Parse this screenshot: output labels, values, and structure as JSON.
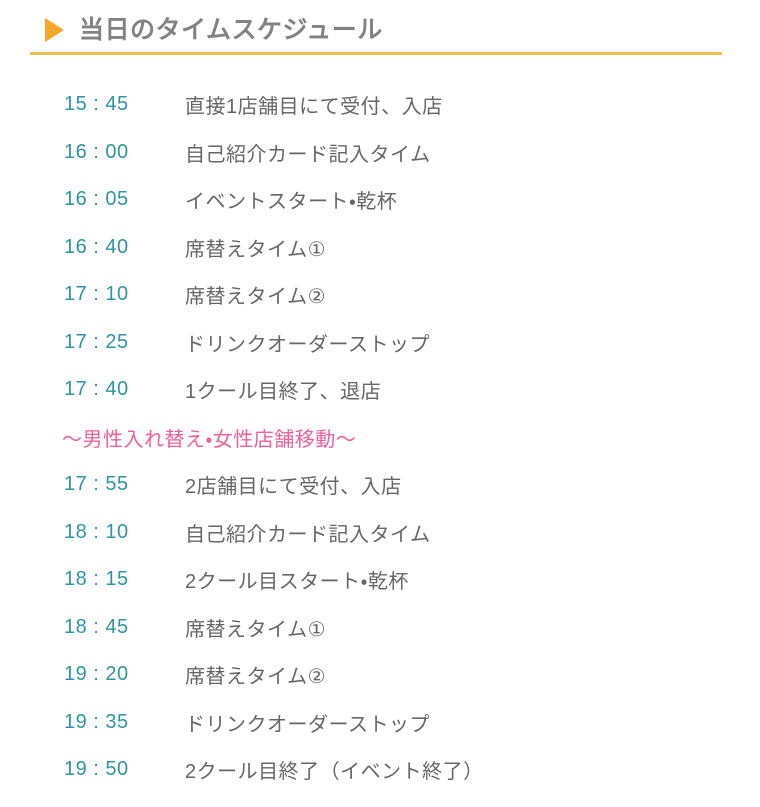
{
  "header": {
    "title": "当日のタイムスケジュール",
    "accent_color": "#f5a72a",
    "underline_color": "#e9c052",
    "title_color": "#828282"
  },
  "schedule": {
    "time_color": "#2d96a0",
    "text_color": "#666666",
    "divider_color": "#ed5f9d",
    "items": [
      {
        "time": "15 : 45",
        "label": "直接1店舗目にて受付、入店"
      },
      {
        "time": "16 : 00",
        "label": "自己紹介カード記入タイム"
      },
      {
        "time": "16 : 05",
        "label": "イベントスタート・乾杯"
      },
      {
        "time": "16 : 40",
        "label": "席替えタイム①"
      },
      {
        "time": "17 : 10",
        "label": "席替えタイム②"
      },
      {
        "time": "17 : 25",
        "label": "ドリンクオーダーストップ"
      },
      {
        "time": "17 : 40",
        "label": "1クール目終了、退店"
      },
      {
        "divider": true,
        "label": "～男性入れ替え・女性店舗移動～"
      },
      {
        "time": "17 : 55",
        "label": "2店舗目にて受付、入店"
      },
      {
        "time": "18 : 10",
        "label": "自己紹介カード記入タイム"
      },
      {
        "time": "18 : 15",
        "label": "2クール目スタート・乾杯"
      },
      {
        "time": "18 : 45",
        "label": "席替えタイム①"
      },
      {
        "time": "19 : 20",
        "label": "席替えタイム②"
      },
      {
        "time": "19 : 35",
        "label": "ドリンクオーダーストップ"
      },
      {
        "time": "19 : 50",
        "label": "2クール目終了（イベント終了）"
      }
    ]
  }
}
